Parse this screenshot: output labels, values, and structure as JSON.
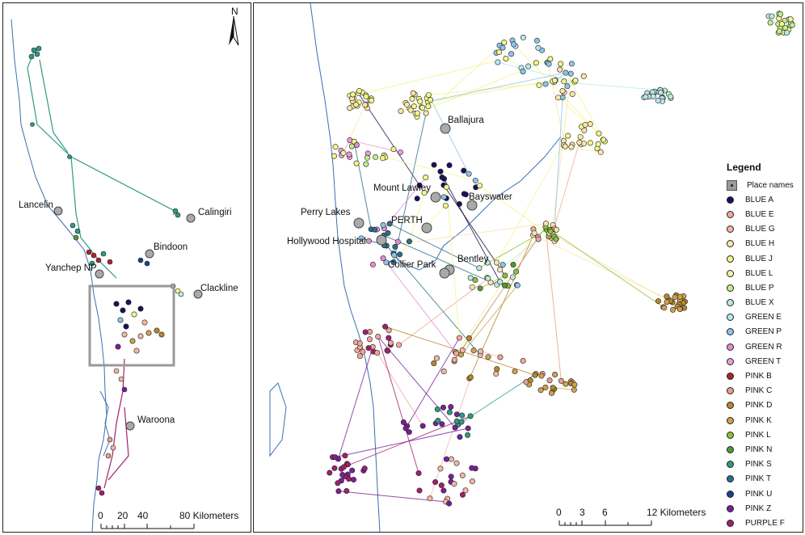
{
  "left_map": {
    "north_label": "N",
    "places": [
      {
        "name": "Lancelin"
      },
      {
        "name": "Calingiri"
      },
      {
        "name": "Bindoon"
      },
      {
        "name": "Yanchep NP"
      },
      {
        "name": "Clackline"
      },
      {
        "name": "Waroona"
      }
    ],
    "scale": {
      "ticks": [
        "0",
        "20",
        "40",
        "80 Kilometers"
      ]
    }
  },
  "right_map": {
    "places": [
      {
        "name": "Ballajura"
      },
      {
        "name": "Mount Lawley"
      },
      {
        "name": "Bayswater"
      },
      {
        "name": "Perry Lakes"
      },
      {
        "name": "PERTH"
      },
      {
        "name": "Hollywood Hospital"
      },
      {
        "name": "Bentley"
      },
      {
        "name": "Collier Park"
      }
    ],
    "scale": {
      "ticks": [
        "0",
        "3",
        "6",
        "12 Kilometers"
      ]
    }
  },
  "legend": {
    "title": "Legend",
    "place_names_label": "Place names",
    "groups": [
      {
        "name": "BLUE A",
        "color": "#14145e"
      },
      {
        "name": "BLUE E",
        "color": "#f0a79a"
      },
      {
        "name": "BLUE G",
        "color": "#f3b7a2"
      },
      {
        "name": "BLUE H",
        "color": "#fbe4a8"
      },
      {
        "name": "BLUE J",
        "color": "#f3f58a"
      },
      {
        "name": "BLUE L",
        "color": "#eef5a0"
      },
      {
        "name": "BLUE P",
        "color": "#c4ec8a"
      },
      {
        "name": "BLUE X",
        "color": "#b9ecd6"
      },
      {
        "name": "GREEN E",
        "color": "#b7e6f0"
      },
      {
        "name": "GREEN P",
        "color": "#8ec3ea"
      },
      {
        "name": "GREEN R",
        "color": "#e08ed0"
      },
      {
        "name": "GREEN T",
        "color": "#f09ad8"
      },
      {
        "name": "PINK B",
        "color": "#b0232a"
      },
      {
        "name": "PINK C",
        "color": "#e6a08a"
      },
      {
        "name": "PINK D",
        "color": "#b8862c"
      },
      {
        "name": "PINK K",
        "color": "#cfa24a"
      },
      {
        "name": "PINK L",
        "color": "#8cbf3c"
      },
      {
        "name": "PINK N",
        "color": "#4f9a36"
      },
      {
        "name": "PINK S",
        "color": "#2e9a84"
      },
      {
        "name": "PINK T",
        "color": "#2a6f8a"
      },
      {
        "name": "PINK U",
        "color": "#1f3f8a"
      },
      {
        "name": "PINK Z",
        "color": "#7a1f9a"
      },
      {
        "name": "PURPLE F",
        "color": "#a0206e"
      }
    ]
  }
}
